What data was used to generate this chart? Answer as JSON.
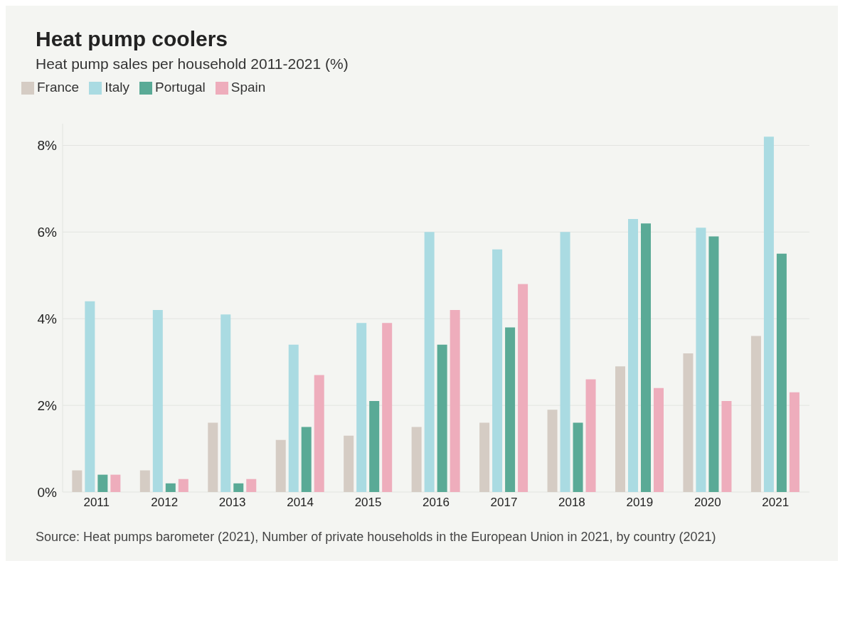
{
  "chart_data": {
    "type": "bar",
    "title": "Heat pump coolers",
    "subtitle": "Heat pump sales per household 2011-2021 (%)",
    "categories": [
      "2011",
      "2012",
      "2013",
      "2014",
      "2015",
      "2016",
      "2017",
      "2018",
      "2019",
      "2020",
      "2021"
    ],
    "series": [
      {
        "name": "France",
        "color": "#d5ccc4",
        "values": [
          0.5,
          0.5,
          1.6,
          1.2,
          1.3,
          1.5,
          1.6,
          1.9,
          2.9,
          3.2,
          3.6
        ]
      },
      {
        "name": "Italy",
        "color": "#aadbe2",
        "values": [
          4.4,
          4.2,
          4.1,
          3.4,
          3.9,
          6.0,
          5.6,
          6.0,
          6.3,
          6.1,
          8.2
        ]
      },
      {
        "name": "Portugal",
        "color": "#5aaa96",
        "values": [
          0.4,
          0.2,
          0.2,
          1.5,
          2.1,
          3.4,
          3.8,
          1.6,
          6.2,
          5.9,
          5.5
        ]
      },
      {
        "name": "Spain",
        "color": "#eeadbc",
        "values": [
          0.4,
          0.3,
          0.3,
          2.7,
          3.9,
          4.2,
          4.8,
          2.6,
          2.4,
          2.1,
          2.3
        ]
      }
    ],
    "ylim": [
      0,
      8.5
    ],
    "yticks": [
      {
        "value": 0,
        "label": "0%"
      },
      {
        "value": 2,
        "label": "2%"
      },
      {
        "value": 4,
        "label": "4%"
      },
      {
        "value": 6,
        "label": "6%"
      },
      {
        "value": 8,
        "label": "8%"
      }
    ],
    "grid": "y",
    "legend": "top left",
    "annotations": [
      "Source: Heat pumps barometer (2021), Number of private households in the European Union in 2021, by country (2021)"
    ]
  }
}
